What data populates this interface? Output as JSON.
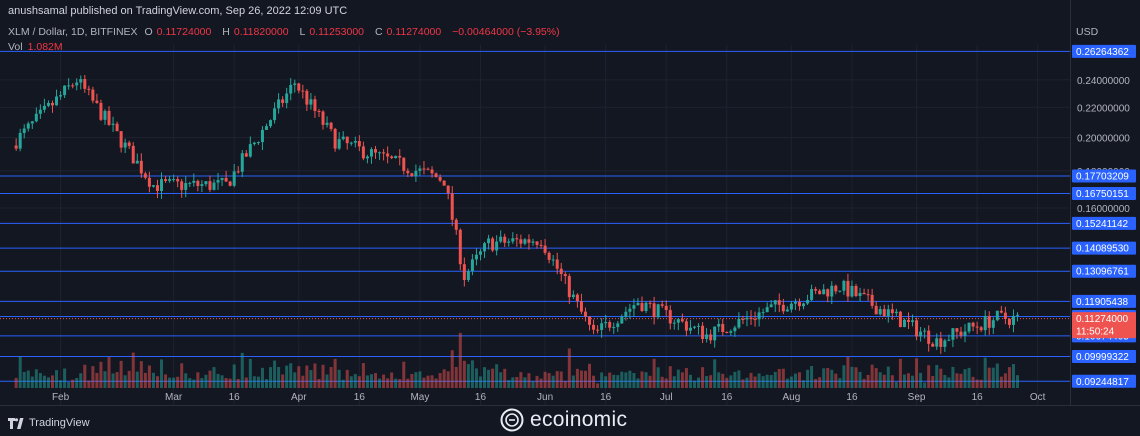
{
  "header": {
    "published": "anushsamal published on TradingView.com, Sep 26, 2022 12:09 UTC"
  },
  "legend": {
    "symbol": "XLM / Dollar, 1D, BITFINEX",
    "o_label": "O",
    "o_value": "0.11724000",
    "h_label": "H",
    "h_value": "0.11820000",
    "l_label": "L",
    "l_value": "0.11253000",
    "c_label": "C",
    "c_value": "0.11274000",
    "change": "−0.00464000 (−3.95%)",
    "vol_label": "Vol",
    "vol_value": "1.082M"
  },
  "axis": {
    "currency": "USD"
  },
  "footer": {
    "tradingview_label": "TradingView",
    "watermark": "ecoinomic"
  },
  "colors": {
    "bg": "#131722",
    "up": "#26a69a",
    "down": "#ef5350",
    "level": "#2962ff",
    "grid": "#1e2230",
    "text": "#b2b5be"
  },
  "chart_data": {
    "type": "candlestick",
    "y_scale": "log",
    "ylim": [
      0.0905,
      0.268
    ],
    "y_ticks": [
      0.24,
      0.22,
      0.2,
      0.18,
      0.16
    ],
    "x_ticks": [
      {
        "label": "Feb",
        "date": "2022-02-01"
      },
      {
        "label": "Mar",
        "date": "2022-03-01"
      },
      {
        "label": "16",
        "date": "2022-03-16"
      },
      {
        "label": "Apr",
        "date": "2022-04-01"
      },
      {
        "label": "16",
        "date": "2022-04-16"
      },
      {
        "label": "May",
        "date": "2022-05-01"
      },
      {
        "label": "16",
        "date": "2022-05-16"
      },
      {
        "label": "Jun",
        "date": "2022-06-01"
      },
      {
        "label": "16",
        "date": "2022-06-16"
      },
      {
        "label": "Jul",
        "date": "2022-07-01"
      },
      {
        "label": "16",
        "date": "2022-07-16"
      },
      {
        "label": "Aug",
        "date": "2022-08-01"
      },
      {
        "label": "16",
        "date": "2022-08-16"
      },
      {
        "label": "Sep",
        "date": "2022-09-01"
      },
      {
        "label": "16",
        "date": "2022-09-16"
      },
      {
        "label": "Oct",
        "date": "2022-10-01"
      }
    ],
    "price_levels": [
      0.26264362,
      0.17703209,
      0.16750151,
      0.15241142,
      0.1408953,
      0.13096761,
      0.11905438,
      0.11349487,
      0.10674405,
      0.09999322,
      0.09244817
    ],
    "current_price": 0.11274,
    "countdown": "11:50:24",
    "key_closes": [
      {
        "date": "2022-01-21",
        "close": 0.198
      },
      {
        "date": "2022-02-05",
        "close": 0.24
      },
      {
        "date": "2022-02-24",
        "close": 0.172
      },
      {
        "date": "2022-03-14",
        "close": 0.172
      },
      {
        "date": "2022-03-31",
        "close": 0.238
      },
      {
        "date": "2022-04-10",
        "close": 0.198
      },
      {
        "date": "2022-04-29",
        "close": 0.181
      },
      {
        "date": "2022-05-07",
        "close": 0.175
      },
      {
        "date": "2022-05-12",
        "close": 0.129
      },
      {
        "date": "2022-05-18",
        "close": 0.143
      },
      {
        "date": "2022-05-31",
        "close": 0.145
      },
      {
        "date": "2022-06-13",
        "close": 0.107
      },
      {
        "date": "2022-06-24",
        "close": 0.119
      },
      {
        "date": "2022-07-11",
        "close": 0.107
      },
      {
        "date": "2022-07-28",
        "close": 0.117
      },
      {
        "date": "2022-08-13",
        "close": 0.125
      },
      {
        "date": "2022-09-06",
        "close": 0.105
      },
      {
        "date": "2022-09-21",
        "close": 0.113
      },
      {
        "date": "2022-09-26",
        "close": 0.11274
      }
    ]
  }
}
